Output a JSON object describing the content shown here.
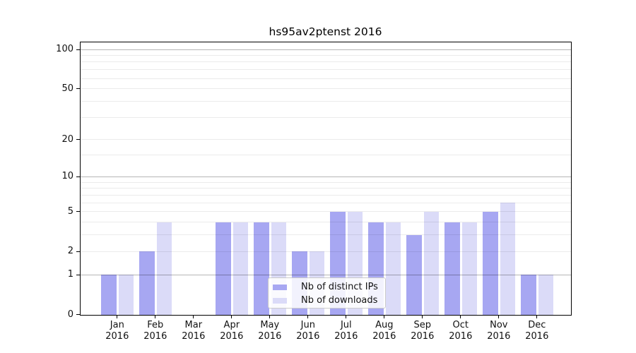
{
  "chart_data": {
    "type": "bar",
    "title": "hs95av2ptenst 2016",
    "categories": [
      "Jan 2016",
      "Feb 2016",
      "Mar 2016",
      "Apr 2016",
      "May 2016",
      "Jun 2016",
      "Jul 2016",
      "Aug 2016",
      "Sep 2016",
      "Oct 2016",
      "Nov 2016",
      "Dec 2016"
    ],
    "series": [
      {
        "name": "Nb of distinct IPs",
        "color": "#a7a7f2",
        "values": [
          1,
          2,
          0,
          4,
          4,
          2,
          5,
          4,
          3,
          4,
          5,
          1
        ]
      },
      {
        "name": "Nb of downloads",
        "color": "#dbdbf8",
        "values": [
          1,
          4,
          0,
          4,
          4,
          2,
          5,
          4,
          5,
          4,
          6,
          1
        ]
      }
    ],
    "y_axis": {
      "scale": "log1p",
      "ticks": [
        0,
        1,
        2,
        5,
        10,
        20,
        50,
        100
      ],
      "ylim": [
        0,
        100
      ]
    },
    "gridlines": {
      "decade_values": [
        1,
        10,
        100
      ],
      "minor_values": [
        2,
        3,
        4,
        5,
        6,
        7,
        8,
        9,
        15,
        20,
        30,
        40,
        50,
        60,
        70,
        80,
        90
      ],
      "decade_color": "rgba(0,0,0,0.29)",
      "minor_color": "rgba(0,0,0,0.08)",
      "on_top_of_bars": true
    },
    "legend": {
      "position": "lower center"
    },
    "axis_color": "#000000",
    "text_color": "#111111",
    "background": "#ffffff"
  }
}
